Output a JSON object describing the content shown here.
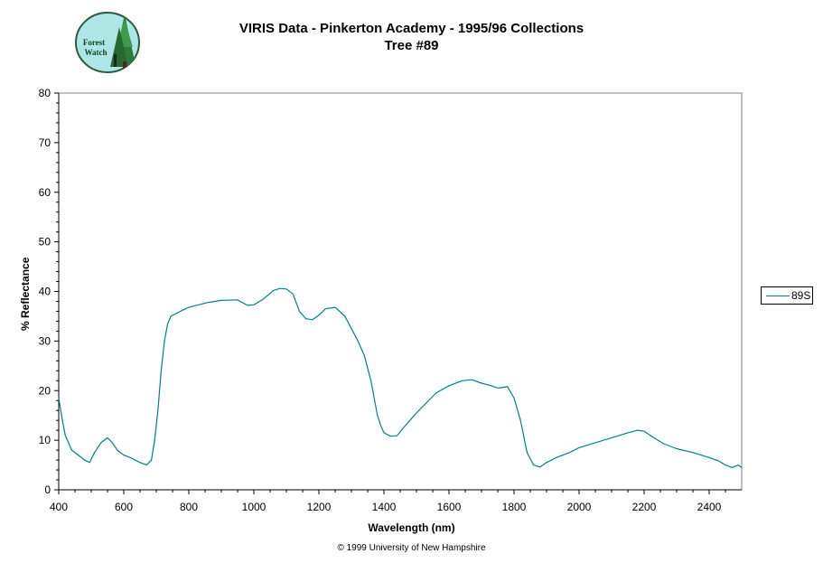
{
  "title": {
    "line1": "VIRIS Data - Pinkerton Academy - 1995/96 Collections",
    "line2": "Tree #89"
  },
  "logo": {
    "text_line1": "Forest",
    "text_line2": "Watch"
  },
  "footer": "© 1999 University of New Hampshire",
  "chart_data": {
    "type": "line",
    "xlabel": "Wavelength (nm)",
    "ylabel": "% Reflectance",
    "xlim": [
      400,
      2500
    ],
    "ylim": [
      0,
      80
    ],
    "x_ticks": [
      400,
      600,
      800,
      1000,
      1200,
      1400,
      1600,
      1800,
      2000,
      2200,
      2400
    ],
    "y_ticks": [
      0,
      10,
      20,
      30,
      40,
      50,
      60,
      70,
      80
    ],
    "grid": false,
    "legend": "right",
    "series": [
      {
        "name": "89S",
        "color": "#00808e",
        "x": [
          400,
          410,
          420,
          440,
          460,
          480,
          495,
          510,
          530,
          550,
          565,
          580,
          600,
          620,
          650,
          670,
          685,
          695,
          705,
          715,
          725,
          735,
          745,
          760,
          780,
          800,
          830,
          860,
          900,
          950,
          980,
          1000,
          1030,
          1060,
          1080,
          1100,
          1120,
          1140,
          1160,
          1180,
          1200,
          1220,
          1250,
          1280,
          1300,
          1320,
          1340,
          1360,
          1380,
          1390,
          1400,
          1420,
          1440,
          1460,
          1480,
          1500,
          1530,
          1560,
          1600,
          1640,
          1670,
          1700,
          1730,
          1750,
          1780,
          1800,
          1820,
          1840,
          1860,
          1880,
          1900,
          1930,
          1970,
          2000,
          2050,
          2100,
          2150,
          2180,
          2200,
          2230,
          2260,
          2300,
          2350,
          2400,
          2430,
          2450,
          2470,
          2490,
          2500
        ],
        "y": [
          18.5,
          14.5,
          11,
          8,
          7,
          6,
          5.5,
          7.5,
          9.5,
          10.5,
          9.5,
          8,
          7,
          6.5,
          5.5,
          5,
          6,
          10,
          16,
          24,
          30,
          33.5,
          35,
          35.5,
          36.2,
          36.8,
          37.3,
          37.8,
          38.2,
          38.3,
          37.2,
          37.3,
          38.5,
          40.2,
          40.6,
          40.5,
          39.5,
          36,
          34.5,
          34.3,
          35.2,
          36.5,
          36.8,
          35,
          32.5,
          30,
          27,
          22,
          15,
          13,
          11.5,
          10.8,
          10.9,
          12.5,
          14,
          15.5,
          17.5,
          19.5,
          21,
          22,
          22.2,
          21.5,
          21,
          20.5,
          20.8,
          18.5,
          14,
          7.5,
          5,
          4.6,
          5.5,
          6.5,
          7.5,
          8.5,
          9.5,
          10.5,
          11.5,
          12,
          11.8,
          10.5,
          9.3,
          8.3,
          7.5,
          6.5,
          5.8,
          5,
          4.5,
          5,
          4.5
        ]
      }
    ]
  }
}
